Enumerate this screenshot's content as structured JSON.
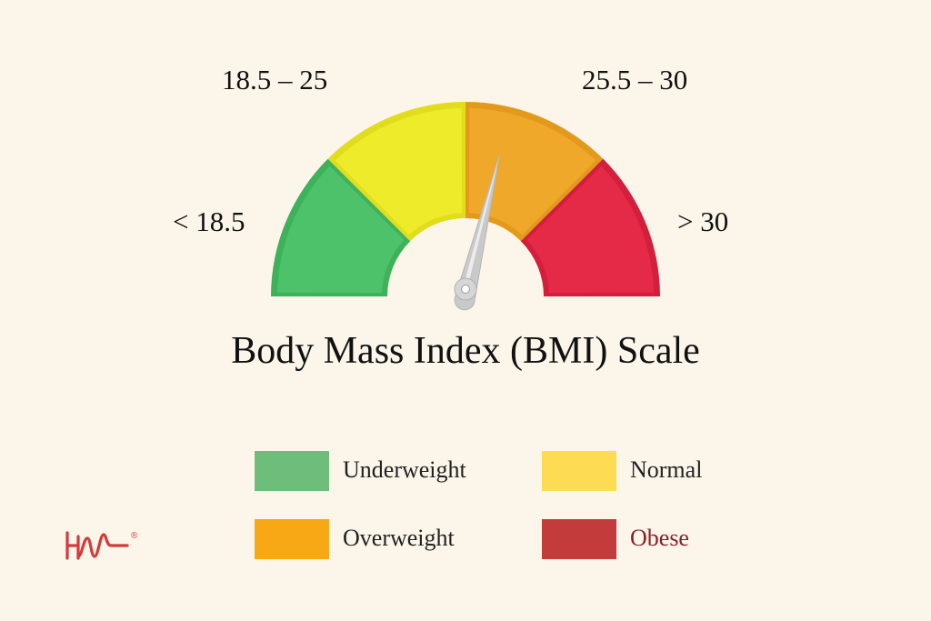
{
  "title": "Body Mass Index (BMI) Scale",
  "ranges": {
    "underweight": "< 18.5",
    "normal": "18.5 – 25",
    "overweight": "25.5 – 30",
    "obese": "> 30"
  },
  "needle_fraction": 0.575,
  "segments": [
    {
      "key": "underweight",
      "color": "#4dc26a",
      "color_dark": "#3eb25a"
    },
    {
      "key": "normal",
      "color": "#eeec2a",
      "color_dark": "#e2dd1c"
    },
    {
      "key": "overweight",
      "color": "#efa82a",
      "color_dark": "#e39a1c"
    },
    {
      "key": "obese",
      "color": "#e52a48",
      "color_dark": "#d31f3c"
    }
  ],
  "legend": [
    {
      "label": "Underweight",
      "color": "#6fbd7a",
      "text_color": "#222222"
    },
    {
      "label": "Normal",
      "color": "#fddc54",
      "text_color": "#222222"
    },
    {
      "label": "Overweight",
      "color": "#f7a814",
      "text_color": "#222222"
    },
    {
      "label": "Obese",
      "color": "#c43b3b",
      "text_color": "#8b1e2a"
    }
  ],
  "logo": {
    "text": "HW",
    "mark": "®",
    "color": "#d33a3c"
  }
}
